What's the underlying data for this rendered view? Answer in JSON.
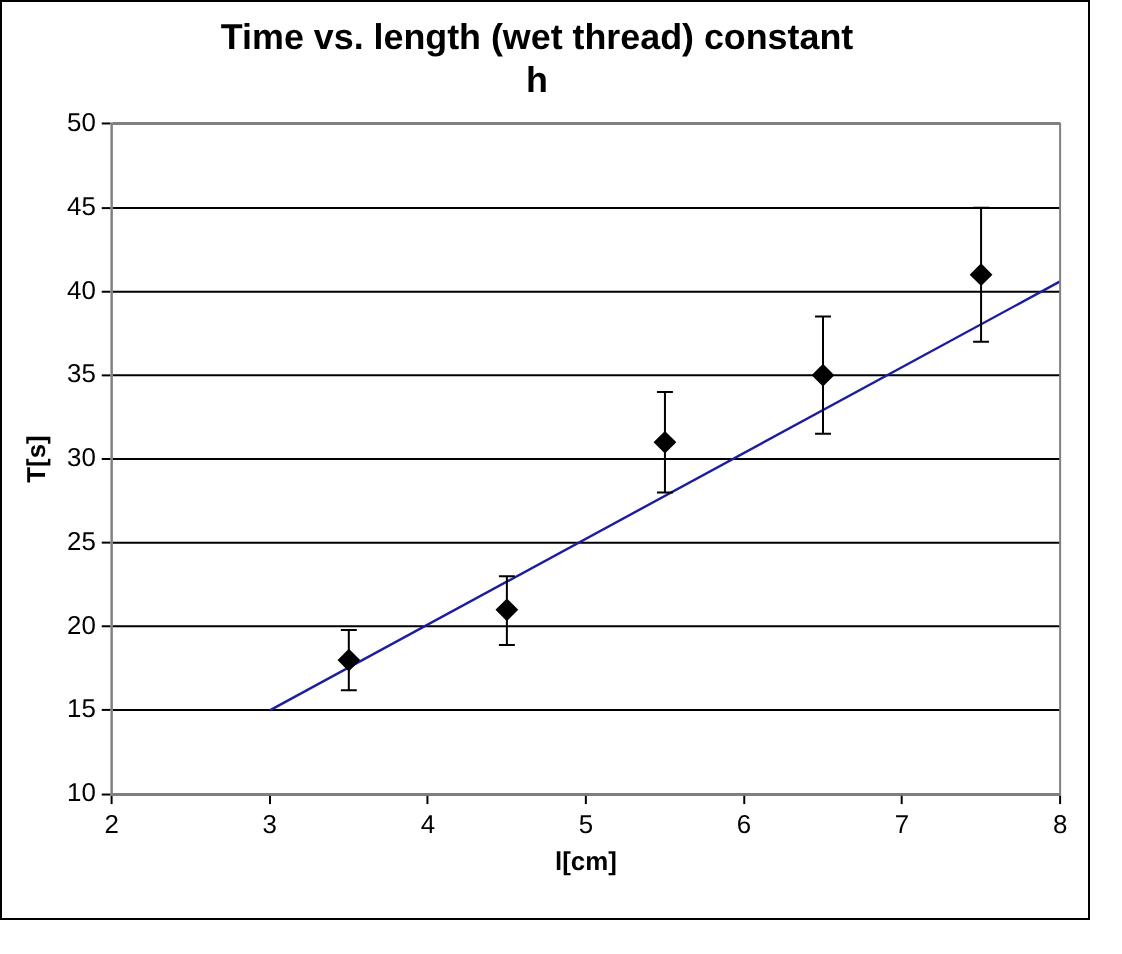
{
  "chart_data": {
    "type": "scatter",
    "title": "Time vs. length (wet thread) constant h",
    "xlabel": "l[cm]",
    "ylabel": "T[s]",
    "xlim": [
      2,
      8
    ],
    "xticks": [
      2,
      3,
      4,
      5,
      6,
      7,
      8
    ],
    "ylim": [
      10,
      50
    ],
    "yticks": [
      10,
      15,
      20,
      25,
      30,
      35,
      40,
      45,
      50
    ],
    "grid": "y",
    "legend": false,
    "marker": "diamond",
    "series": [
      {
        "color": "#000000",
        "x": [
          3.5,
          4.5,
          5.5,
          6.5,
          7.5
        ],
        "values": [
          18,
          21,
          31,
          35,
          41
        ],
        "errors": [
          1.8,
          [
            18.9,
            23
          ],
          3,
          3.5,
          4
        ]
      },
      {
        "type": "line",
        "color": "#1c1ca0",
        "x": [
          3,
          8
        ],
        "values": [
          15,
          40.6
        ],
        "marker": "none"
      }
    ]
  }
}
